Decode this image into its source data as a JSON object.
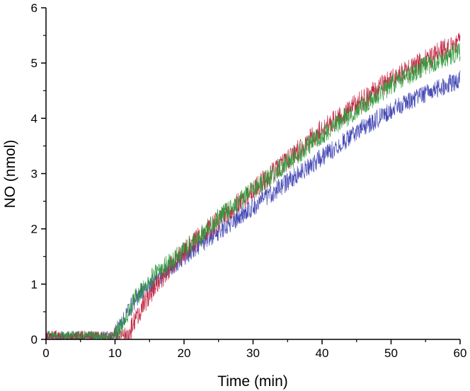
{
  "chart_data": {
    "type": "line",
    "title": "",
    "xlabel": "Time (min)",
    "ylabel": "NO (nmol)",
    "xlim": [
      0,
      60
    ],
    "ylim": [
      0,
      6
    ],
    "x_ticks": [
      0,
      10,
      20,
      30,
      40,
      50,
      60
    ],
    "y_ticks": [
      0,
      1,
      2,
      3,
      4,
      5,
      6
    ],
    "grid": false,
    "legend": "none",
    "noise": "high-frequency jitter around each trend",
    "series": [
      {
        "color": "#3b3fb0",
        "noise_amplitude": 0.17,
        "points": [
          [
            0,
            0.05
          ],
          [
            5,
            0.05
          ],
          [
            9.5,
            0.05
          ],
          [
            11,
            0.3
          ],
          [
            13,
            0.75
          ],
          [
            16,
            1.1
          ],
          [
            20,
            1.5
          ],
          [
            25,
            1.95
          ],
          [
            30,
            2.4
          ],
          [
            35,
            2.85
          ],
          [
            40,
            3.3
          ],
          [
            45,
            3.75
          ],
          [
            50,
            4.15
          ],
          [
            55,
            4.45
          ],
          [
            60,
            4.7
          ]
        ]
      },
      {
        "color": "#c0203c",
        "noise_amplitude": 0.2,
        "points": [
          [
            0,
            0.05
          ],
          [
            5,
            0.05
          ],
          [
            10,
            0.05
          ],
          [
            11,
            0.0
          ],
          [
            12,
            0.1
          ],
          [
            14,
            0.6
          ],
          [
            16,
            1.0
          ],
          [
            18,
            1.3
          ],
          [
            20,
            1.6
          ],
          [
            25,
            2.15
          ],
          [
            30,
            2.7
          ],
          [
            35,
            3.25
          ],
          [
            40,
            3.8
          ],
          [
            45,
            4.25
          ],
          [
            50,
            4.7
          ],
          [
            55,
            5.05
          ],
          [
            60,
            5.4
          ]
        ]
      },
      {
        "color": "#2e9a3a",
        "noise_amplitude": 0.18,
        "points": [
          [
            0,
            0.05
          ],
          [
            5,
            0.05
          ],
          [
            9.5,
            0.05
          ],
          [
            11,
            0.25
          ],
          [
            13,
            0.75
          ],
          [
            16,
            1.2
          ],
          [
            20,
            1.6
          ],
          [
            25,
            2.2
          ],
          [
            30,
            2.7
          ],
          [
            35,
            3.2
          ],
          [
            40,
            3.7
          ],
          [
            45,
            4.15
          ],
          [
            50,
            4.6
          ],
          [
            55,
            4.95
          ],
          [
            60,
            5.2
          ]
        ]
      }
    ]
  }
}
